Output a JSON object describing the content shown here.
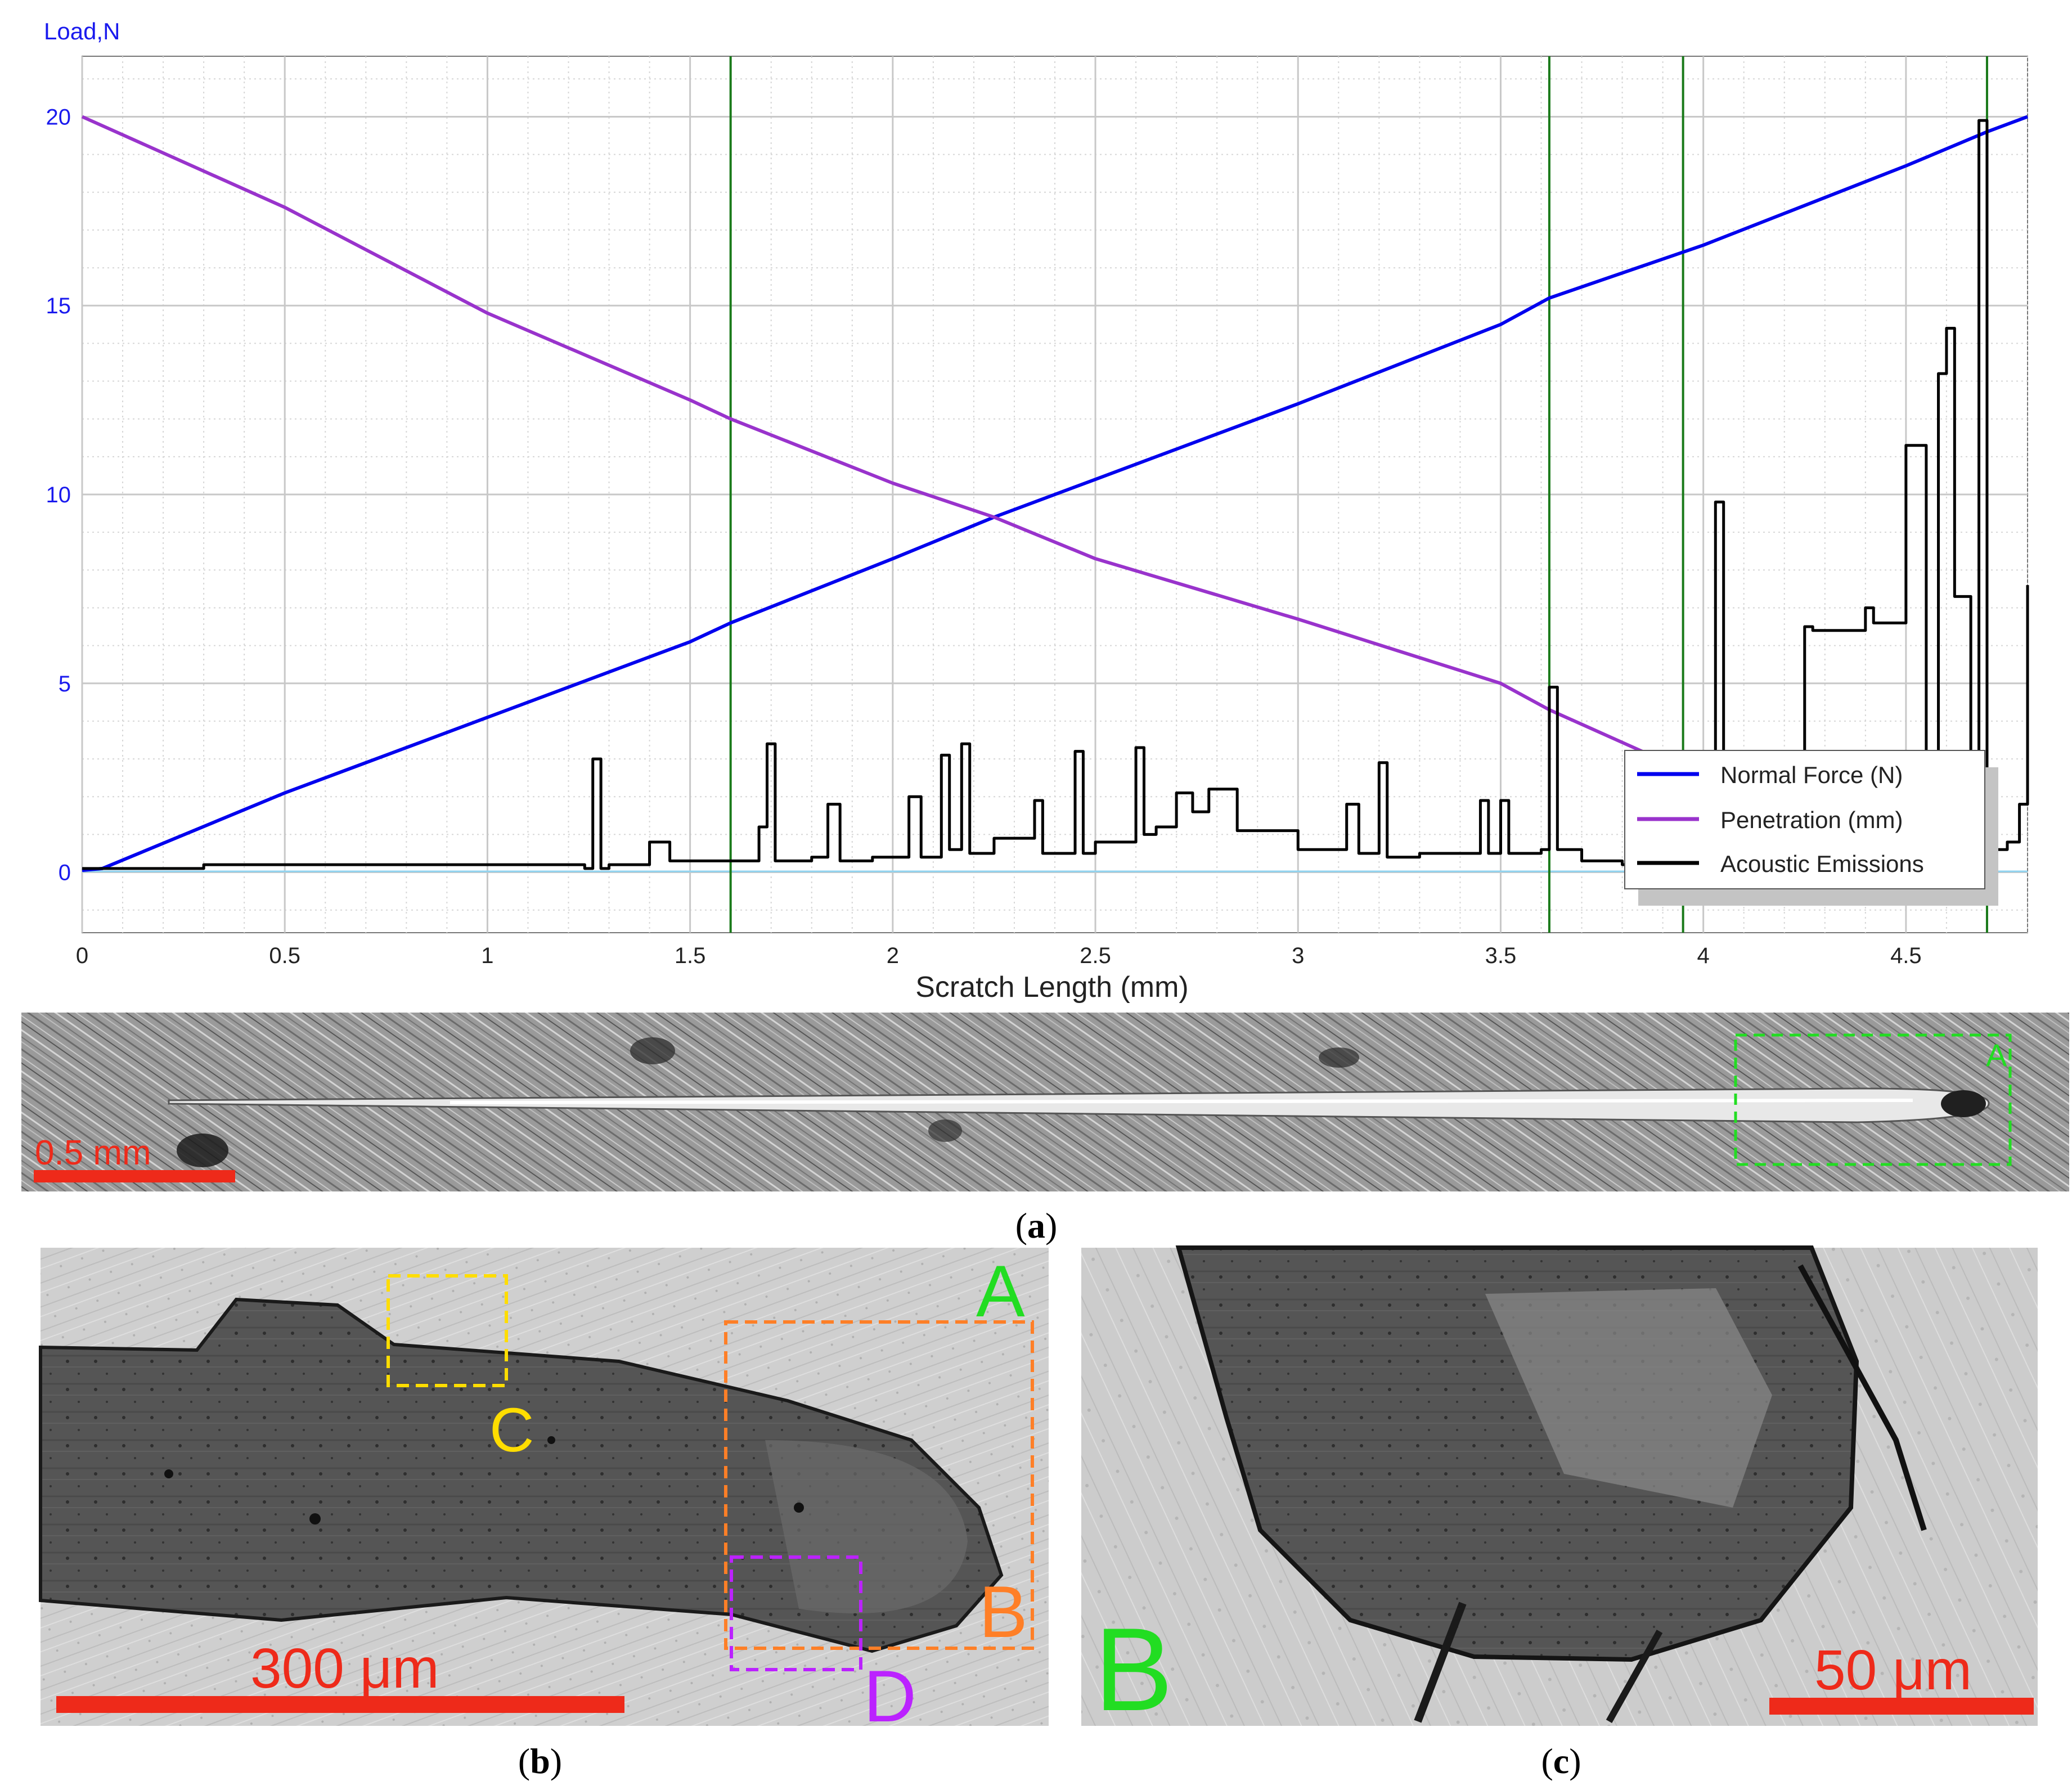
{
  "chart_data": {
    "type": "line",
    "ylabel": "Load,N",
    "xlabel": "Scratch Length (mm)",
    "xlim": [
      0,
      4.8
    ],
    "ylim": [
      -1.6,
      21.6
    ],
    "x_ticks": [
      "0",
      "0.5",
      "1",
      "1.5",
      "2",
      "2.5",
      "3",
      "3.5",
      "4",
      "4.5"
    ],
    "x_tick_values": [
      0,
      0.5,
      1,
      1.5,
      2,
      2.5,
      3,
      3.5,
      4,
      4.5
    ],
    "y_ticks": [
      "0",
      "5",
      "10",
      "15",
      "20"
    ],
    "y_tick_values": [
      0,
      5,
      10,
      15,
      20
    ],
    "grid": true,
    "legend_position": "bottom-right",
    "vertical_markers": [
      1.6,
      3.62,
      3.95,
      4.7
    ],
    "series": [
      {
        "name": "Normal Force (N)",
        "color": "#0000ee",
        "x": [
          0,
          0.05,
          0.5,
          1.0,
          1.5,
          1.6,
          2.0,
          2.25,
          2.5,
          3.0,
          3.5,
          3.62,
          4.0,
          4.5,
          4.7,
          4.8
        ],
        "y": [
          0.05,
          0.1,
          2.1,
          4.1,
          6.1,
          6.6,
          8.3,
          9.4,
          10.4,
          12.4,
          14.5,
          15.2,
          16.6,
          18.7,
          19.6,
          20.0
        ]
      },
      {
        "name": "Penetration (mm)",
        "color": "#9933cc",
        "x": [
          0,
          0.5,
          1.0,
          1.5,
          1.6,
          2.0,
          2.25,
          2.5,
          3.0,
          3.5,
          3.62,
          3.87
        ],
        "y": [
          20.0,
          17.6,
          14.8,
          12.5,
          12.0,
          10.3,
          9.4,
          8.3,
          6.7,
          5.0,
          4.3,
          3.1
        ]
      },
      {
        "name": "Acoustic Emissions",
        "color": "#000000",
        "x": [
          0,
          0.3,
          1.24,
          1.26,
          1.28,
          1.3,
          1.4,
          1.45,
          1.5,
          1.6,
          1.67,
          1.69,
          1.71,
          1.8,
          1.84,
          1.87,
          1.95,
          2.02,
          2.04,
          2.07,
          2.12,
          2.14,
          2.17,
          2.19,
          2.25,
          2.35,
          2.37,
          2.45,
          2.47,
          2.5,
          2.6,
          2.62,
          2.65,
          2.7,
          2.74,
          2.78,
          2.85,
          3.0,
          3.12,
          3.15,
          3.2,
          3.22,
          3.3,
          3.45,
          3.47,
          3.5,
          3.52,
          3.6,
          3.62,
          3.64,
          3.7,
          3.8,
          4.01,
          4.03,
          4.05,
          4.25,
          4.27,
          4.4,
          4.42,
          4.5,
          4.55,
          4.58,
          4.6,
          4.62,
          4.66,
          4.68,
          4.7,
          4.75,
          4.78,
          4.8
        ],
        "y": [
          0.1,
          0.2,
          0.1,
          3.0,
          0.1,
          0.2,
          0.8,
          0.3,
          0.3,
          0.3,
          1.2,
          3.4,
          0.3,
          0.4,
          1.8,
          0.3,
          0.4,
          0.4,
          2.0,
          0.4,
          3.1,
          0.6,
          3.4,
          0.5,
          0.9,
          1.9,
          0.5,
          3.2,
          0.5,
          0.8,
          3.3,
          1.0,
          1.2,
          2.1,
          1.6,
          2.2,
          1.1,
          0.6,
          1.8,
          0.5,
          2.9,
          0.4,
          0.5,
          1.9,
          0.5,
          1.9,
          0.5,
          0.6,
          4.9,
          0.6,
          0.3,
          0.2,
          0.3,
          9.8,
          0.3,
          6.5,
          6.4,
          7.0,
          6.6,
          11.3,
          0.4,
          13.2,
          14.4,
          7.3,
          0.5,
          19.9,
          0.6,
          0.8,
          1.8,
          7.6
        ]
      }
    ]
  },
  "panels": {
    "a_label": "a",
    "b_label": "b",
    "c_label": "c",
    "a_scale_text": "0.5 mm",
    "a_box_label": "A",
    "b_box_label_A": "A",
    "b_box_label_B": "B",
    "b_box_label_C": "C",
    "b_box_label_D": "D",
    "b_scale_text": "300 μm",
    "c_label_B": "B",
    "c_scale_text": "50 μm",
    "colors": {
      "scale_bar": "#ee2a1a",
      "box_A": "#22dd22",
      "box_B": "#ff7f27",
      "box_C": "#ffdd00",
      "box_D": "#bb22ff"
    }
  }
}
